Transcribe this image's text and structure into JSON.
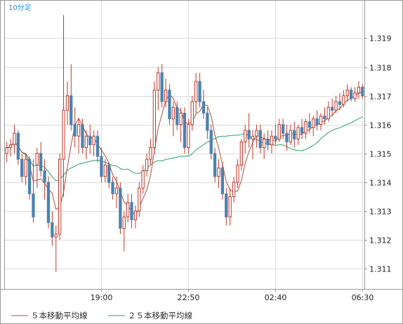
{
  "interval_label": "10分足",
  "colors": {
    "up_candle": "#ffffff",
    "up_border": "#c0392b",
    "down_candle": "#4a82b4",
    "wick": "#c0392b",
    "ma5": "#b05040",
    "ma25": "#2e9e6e",
    "grid": "#dcdcdc",
    "frame": "#9a9a9a"
  },
  "chart_data": {
    "type": "candlestick",
    "interval": "10分足",
    "ylim": [
      1.3103,
      1.3203
    ],
    "yticks": [
      "1.311",
      "1.312",
      "1.313",
      "1.314",
      "1.315",
      "1.316",
      "1.317",
      "1.318",
      "1.319"
    ],
    "xticks": [
      {
        "label": "19:00",
        "index": 25
      },
      {
        "label": "22:50",
        "index": 48
      },
      {
        "label": "02:40",
        "index": 71
      },
      {
        "label": "06:30",
        "index": 94
      }
    ],
    "legend": [
      {
        "name": "５本移動平均線",
        "color": "#b05040"
      },
      {
        "name": "２５本移動平均線",
        "color": "#2e9e6e"
      }
    ],
    "candles": [
      [
        1.315,
        1.3154,
        1.3147,
        1.3152
      ],
      [
        1.3152,
        1.3155,
        1.3149,
        1.3153
      ],
      [
        1.3153,
        1.316,
        1.315,
        1.3157
      ],
      [
        1.3157,
        1.3158,
        1.3146,
        1.3148
      ],
      [
        1.3148,
        1.315,
        1.314,
        1.3142
      ],
      [
        1.3142,
        1.315,
        1.3139,
        1.3148
      ],
      [
        1.3148,
        1.3149,
        1.3134,
        1.3136
      ],
      [
        1.3136,
        1.3148,
        1.3126,
        1.3128
      ],
      [
        1.3146,
        1.3152,
        1.3138,
        1.315
      ],
      [
        1.315,
        1.3154,
        1.3142,
        1.3144
      ],
      [
        1.3144,
        1.3148,
        1.3134,
        1.314
      ],
      [
        1.314,
        1.3142,
        1.3124,
        1.3126
      ],
      [
        1.3126,
        1.313,
        1.3118,
        1.3121
      ],
      [
        1.3121,
        1.3125,
        1.3109,
        1.3122
      ],
      [
        1.3122,
        1.315,
        1.312,
        1.3148
      ],
      [
        1.3148,
        1.3198,
        1.3135,
        1.3165
      ],
      [
        1.3165,
        1.3175,
        1.316,
        1.317
      ],
      [
        1.317,
        1.3181,
        1.3158,
        1.316
      ],
      [
        1.316,
        1.3166,
        1.3152,
        1.3156
      ],
      [
        1.3156,
        1.3162,
        1.315,
        1.316
      ],
      [
        1.316,
        1.3162,
        1.315,
        1.3152
      ],
      [
        1.3152,
        1.3158,
        1.3148,
        1.3156
      ],
      [
        1.3156,
        1.316,
        1.315,
        1.3153
      ],
      [
        1.3153,
        1.3158,
        1.3149,
        1.3156
      ],
      [
        1.3156,
        1.3158,
        1.3147,
        1.3149
      ],
      [
        1.3149,
        1.3152,
        1.314,
        1.3142
      ],
      [
        1.3142,
        1.3148,
        1.314,
        1.3146
      ],
      [
        1.3146,
        1.3147,
        1.3138,
        1.314
      ],
      [
        1.314,
        1.3142,
        1.3134,
        1.3136
      ],
      [
        1.3136,
        1.3142,
        1.3131,
        1.3138
      ],
      [
        1.3138,
        1.314,
        1.3122,
        1.3124
      ],
      [
        1.3124,
        1.313,
        1.3116,
        1.3128
      ],
      [
        1.3128,
        1.3136,
        1.3126,
        1.3133
      ],
      [
        1.3133,
        1.3136,
        1.3124,
        1.3127
      ],
      [
        1.3127,
        1.3132,
        1.3124,
        1.313
      ],
      [
        1.313,
        1.314,
        1.3128,
        1.3138
      ],
      [
        1.3138,
        1.3146,
        1.3136,
        1.3144
      ],
      [
        1.3144,
        1.315,
        1.3142,
        1.3148
      ],
      [
        1.3148,
        1.3155,
        1.3146,
        1.3152
      ],
      [
        1.3152,
        1.3175,
        1.315,
        1.3172
      ],
      [
        1.3172,
        1.318,
        1.3165,
        1.3178
      ],
      [
        1.3178,
        1.3181,
        1.3166,
        1.3168
      ],
      [
        1.3168,
        1.3176,
        1.3166,
        1.3172
      ],
      [
        1.3172,
        1.3174,
        1.316,
        1.3162
      ],
      [
        1.3162,
        1.3168,
        1.3156,
        1.3166
      ],
      [
        1.3166,
        1.3168,
        1.3158,
        1.316
      ],
      [
        1.316,
        1.3166,
        1.3154,
        1.3164
      ],
      [
        1.3164,
        1.3166,
        1.315,
        1.3152
      ],
      [
        1.3152,
        1.3162,
        1.315,
        1.316
      ],
      [
        1.316,
        1.317,
        1.3158,
        1.3168
      ],
      [
        1.3168,
        1.3178,
        1.3164,
        1.3175
      ],
      [
        1.3175,
        1.3178,
        1.3166,
        1.3168
      ],
      [
        1.3168,
        1.3172,
        1.3162,
        1.3164
      ],
      [
        1.3164,
        1.3166,
        1.3155,
        1.3158
      ],
      [
        1.3158,
        1.316,
        1.3148,
        1.315
      ],
      [
        1.315,
        1.3152,
        1.314,
        1.3142
      ],
      [
        1.3142,
        1.3148,
        1.3138,
        1.3145
      ],
      [
        1.3145,
        1.3147,
        1.3134,
        1.3136
      ],
      [
        1.3136,
        1.3138,
        1.3125,
        1.3128
      ],
      [
        1.3128,
        1.3138,
        1.3125,
        1.3135
      ],
      [
        1.3135,
        1.3142,
        1.3133,
        1.314
      ],
      [
        1.314,
        1.3148,
        1.3138,
        1.3146
      ],
      [
        1.3146,
        1.3155,
        1.3144,
        1.3154
      ],
      [
        1.3154,
        1.316,
        1.315,
        1.3158
      ],
      [
        1.3158,
        1.3164,
        1.3152,
        1.3155
      ],
      [
        1.3155,
        1.3158,
        1.3148,
        1.3156
      ],
      [
        1.3156,
        1.316,
        1.3152,
        1.3158
      ],
      [
        1.3158,
        1.316,
        1.315,
        1.3152
      ],
      [
        1.3152,
        1.3157,
        1.3148,
        1.3155
      ],
      [
        1.3155,
        1.3158,
        1.3151,
        1.3153
      ],
      [
        1.3153,
        1.3158,
        1.315,
        1.3156
      ],
      [
        1.3156,
        1.316,
        1.3153,
        1.3155
      ],
      [
        1.3155,
        1.3162,
        1.3154,
        1.316
      ],
      [
        1.316,
        1.3162,
        1.3155,
        1.3157
      ],
      [
        1.3157,
        1.316,
        1.3151,
        1.3154
      ],
      [
        1.3154,
        1.316,
        1.3153,
        1.3158
      ],
      [
        1.3158,
        1.3161,
        1.3152,
        1.3155
      ],
      [
        1.3155,
        1.316,
        1.3153,
        1.3159
      ],
      [
        1.3159,
        1.3162,
        1.3155,
        1.3157
      ],
      [
        1.3157,
        1.3162,
        1.3155,
        1.3161
      ],
      [
        1.3161,
        1.3164,
        1.3157,
        1.3159
      ],
      [
        1.3159,
        1.3163,
        1.3156,
        1.3162
      ],
      [
        1.3162,
        1.3165,
        1.3158,
        1.316
      ],
      [
        1.316,
        1.3164,
        1.3158,
        1.3163
      ],
      [
        1.3163,
        1.3166,
        1.316,
        1.3162
      ],
      [
        1.3162,
        1.3168,
        1.3161,
        1.3166
      ],
      [
        1.3166,
        1.3169,
        1.3163,
        1.3165
      ],
      [
        1.3165,
        1.317,
        1.3164,
        1.3168
      ],
      [
        1.3168,
        1.3171,
        1.3165,
        1.3167
      ],
      [
        1.3167,
        1.3172,
        1.3166,
        1.317
      ],
      [
        1.317,
        1.3174,
        1.3168,
        1.3172
      ],
      [
        1.3172,
        1.3173,
        1.3168,
        1.3169
      ],
      [
        1.3169,
        1.3173,
        1.3168,
        1.3171
      ],
      [
        1.3171,
        1.3175,
        1.3169,
        1.3173
      ],
      [
        1.3173,
        1.3174,
        1.3169,
        1.317
      ]
    ]
  }
}
